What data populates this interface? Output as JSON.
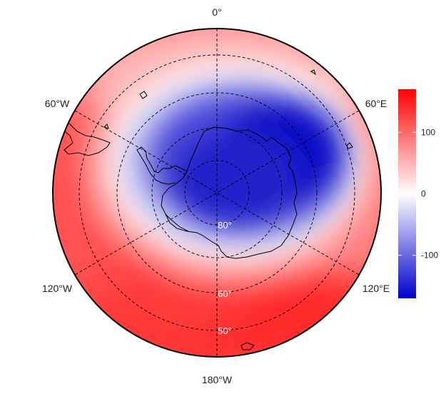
{
  "map": {
    "projection": "south-polar-stereographic",
    "longitude_labels": {
      "top": "0°",
      "upper_left": "60°W",
      "upper_right": "60°E",
      "lower_left": "120°W",
      "lower_right": "120°E",
      "bottom": "180°W"
    },
    "latitude_labels": {
      "inner": "80°",
      "middle": "60°",
      "outer": "50°"
    },
    "graticule": {
      "style": "dashed",
      "color": "#000000"
    }
  },
  "colorbar": {
    "ticks": [
      {
        "value": 100,
        "label": "100"
      },
      {
        "value": 0,
        "label": "0"
      },
      {
        "value": -100,
        "label": "-100"
      }
    ],
    "range": [
      -170,
      170
    ],
    "colors": {
      "high": "#ff0000",
      "mid": "#ffffff",
      "low": "#0000cc"
    }
  }
}
